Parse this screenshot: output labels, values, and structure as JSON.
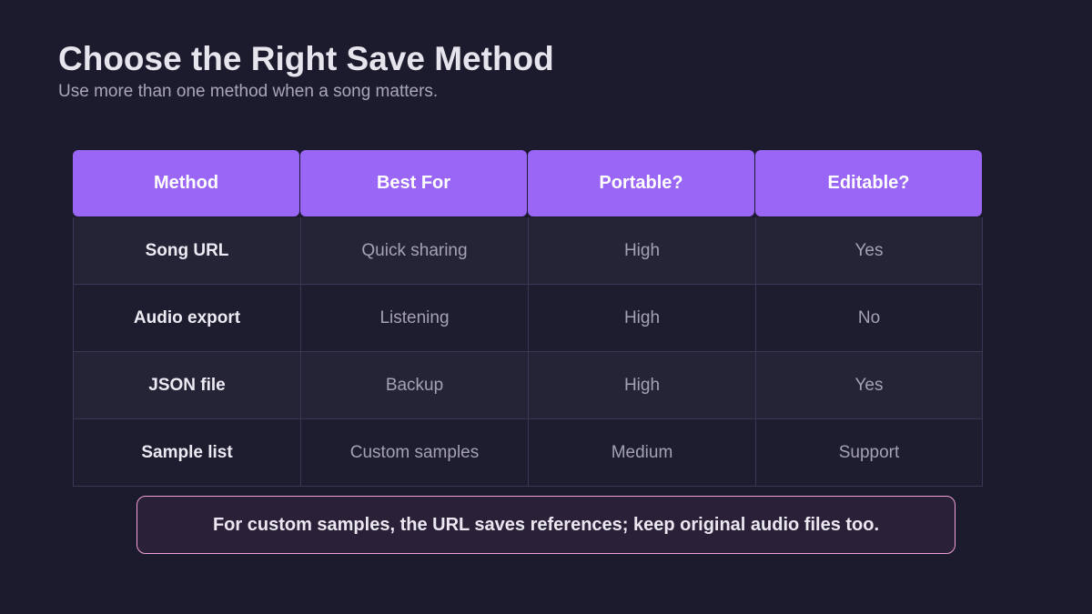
{
  "title": "Choose the Right Save Method",
  "subtitle": "Use more than one method when a song matters.",
  "table": {
    "headers": [
      "Method",
      "Best For",
      "Portable?",
      "Editable?"
    ],
    "rows": [
      [
        "Song URL",
        "Quick sharing",
        "High",
        "Yes"
      ],
      [
        "Audio export",
        "Listening",
        "High",
        "No"
      ],
      [
        "JSON file",
        "Backup",
        "High",
        "Yes"
      ],
      [
        "Sample list",
        "Custom samples",
        "Medium",
        "Support"
      ]
    ]
  },
  "note": "For custom samples, the URL saves references; keep original audio files too.",
  "colors": {
    "background": "#1c1b2e",
    "header": "#9a66f5",
    "note_border": "#f0a0d8"
  }
}
